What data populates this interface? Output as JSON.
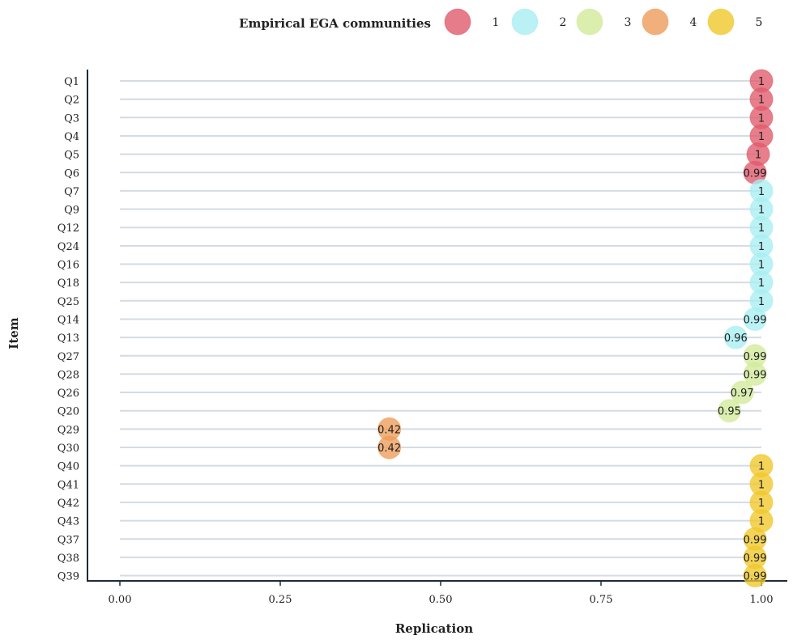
{
  "chart_data": {
    "type": "scatter",
    "legend": {
      "title": "Empirical EGA communities",
      "entries": [
        {
          "label": "1",
          "color": "#e05a6b"
        },
        {
          "label": "2",
          "color": "#a8eef2"
        },
        {
          "label": "3",
          "color": "#d2ea9a"
        },
        {
          "label": "4",
          "color": "#ed9c5a"
        },
        {
          "label": "5",
          "color": "#f0c82a"
        }
      ],
      "placement": "top"
    },
    "xlabel": "Replication",
    "ylabel": "Item",
    "xlim": [
      -0.05,
      1.02
    ],
    "xticks": [
      "0.00",
      "0.25",
      "0.50",
      "0.75",
      "1.00"
    ],
    "xtick_values": [
      0,
      0.25,
      0.5,
      0.75,
      1.0
    ],
    "grid": "horizontal",
    "points": [
      {
        "item": "Q1",
        "value": 1,
        "label": "1",
        "community": 1
      },
      {
        "item": "Q2",
        "value": 1,
        "label": "1",
        "community": 1
      },
      {
        "item": "Q3",
        "value": 1,
        "label": "1",
        "community": 1
      },
      {
        "item": "Q4",
        "value": 1,
        "label": "1",
        "community": 1
      },
      {
        "item": "Q5",
        "value": 0.995,
        "label": "1",
        "community": 1
      },
      {
        "item": "Q6",
        "value": 0.99,
        "label": "0.99",
        "community": 1
      },
      {
        "item": "Q7",
        "value": 1,
        "label": "1",
        "community": 2
      },
      {
        "item": "Q9",
        "value": 1,
        "label": "1",
        "community": 2
      },
      {
        "item": "Q12",
        "value": 1,
        "label": "1",
        "community": 2
      },
      {
        "item": "Q24",
        "value": 1,
        "label": "1",
        "community": 2
      },
      {
        "item": "Q16",
        "value": 1,
        "label": "1",
        "community": 2
      },
      {
        "item": "Q18",
        "value": 1,
        "label": "1",
        "community": 2
      },
      {
        "item": "Q25",
        "value": 1,
        "label": "1",
        "community": 2
      },
      {
        "item": "Q14",
        "value": 0.99,
        "label": "0.99",
        "community": 2
      },
      {
        "item": "Q13",
        "value": 0.96,
        "label": "0.96",
        "community": 2
      },
      {
        "item": "Q27",
        "value": 0.99,
        "label": "0.99",
        "community": 3
      },
      {
        "item": "Q28",
        "value": 0.99,
        "label": "0.99",
        "community": 3
      },
      {
        "item": "Q26",
        "value": 0.97,
        "label": "0.97",
        "community": 3
      },
      {
        "item": "Q20",
        "value": 0.95,
        "label": "0.95",
        "community": 3
      },
      {
        "item": "Q29",
        "value": 0.42,
        "label": "0.42",
        "community": 4
      },
      {
        "item": "Q30",
        "value": 0.42,
        "label": "0.42",
        "community": 4
      },
      {
        "item": "Q40",
        "value": 1,
        "label": "1",
        "community": 5
      },
      {
        "item": "Q41",
        "value": 1,
        "label": "1",
        "community": 5
      },
      {
        "item": "Q42",
        "value": 1,
        "label": "1",
        "community": 5
      },
      {
        "item": "Q43",
        "value": 1,
        "label": "1",
        "community": 5
      },
      {
        "item": "Q37",
        "value": 0.99,
        "label": "0.99",
        "community": 5
      },
      {
        "item": "Q38",
        "value": 0.99,
        "label": "0.99",
        "community": 5
      },
      {
        "item": "Q39",
        "value": 0.99,
        "label": "0.99",
        "community": 5
      }
    ]
  }
}
